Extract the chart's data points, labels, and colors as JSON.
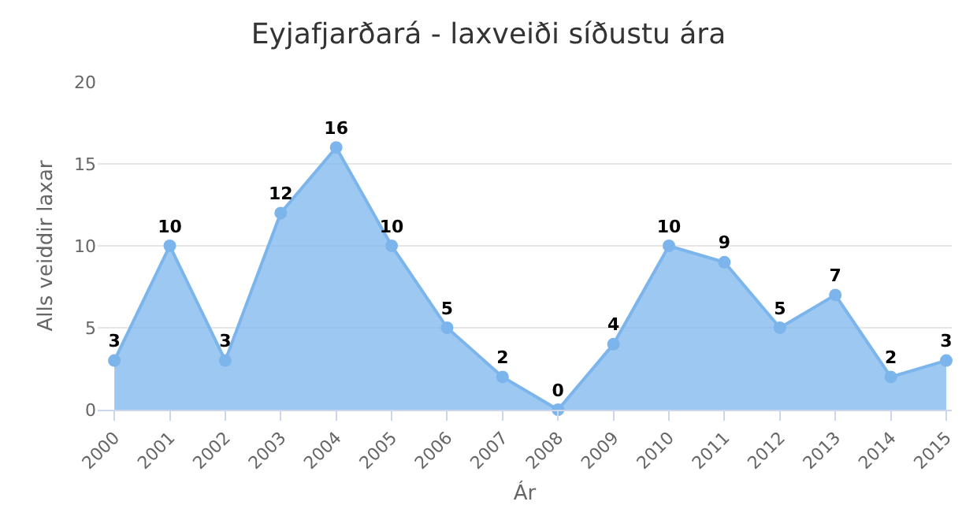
{
  "chart_data": {
    "type": "area",
    "title": "Eyjafjarðará - laxveiði síðustu ára",
    "xlabel": "Ár",
    "ylabel": "Alls veiddir laxar",
    "categories": [
      "2000",
      "2001",
      "2002",
      "2003",
      "2004",
      "2005",
      "2006",
      "2007",
      "2008",
      "2009",
      "2010",
      "2011",
      "2012",
      "2013",
      "2014",
      "2015"
    ],
    "values": [
      3,
      10,
      3,
      12,
      16,
      10,
      5,
      2,
      0,
      4,
      10,
      9,
      5,
      7,
      2,
      3
    ],
    "color": "#7cb5ec",
    "ylim": [
      0,
      20
    ],
    "yticks": [
      0,
      5,
      10,
      15,
      20
    ],
    "grid": "y",
    "marker": "circle",
    "data_labels": true
  }
}
